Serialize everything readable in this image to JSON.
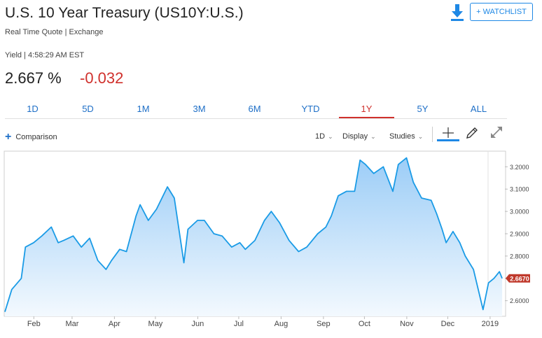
{
  "header": {
    "title": "U.S. 10 Year Treasury (US10Y:U.S.)",
    "subtitle": "Real Time Quote | Exchange",
    "yield_line": "Yield | 4:58:29 AM EST",
    "price": "2.667 %",
    "change": "-0.032",
    "watchlist_label": "+ WATCHLIST"
  },
  "colors": {
    "accent": "#1e88e5",
    "negative": "#d0312d",
    "line": "#1a9be6",
    "fill": "#cfe6fb"
  },
  "tabs": [
    {
      "label": "1D"
    },
    {
      "label": "5D"
    },
    {
      "label": "1M"
    },
    {
      "label": "3M"
    },
    {
      "label": "6M"
    },
    {
      "label": "YTD"
    },
    {
      "label": "1Y",
      "active": true
    },
    {
      "label": "5Y"
    },
    {
      "label": "ALL"
    }
  ],
  "toolbar": {
    "comparison": "Comparison",
    "interval": "1D",
    "display": "Display",
    "studies": "Studies"
  },
  "icons": [
    "download-icon",
    "plus-icon",
    "crosshair-icon",
    "draw-pencil-icon",
    "expand-icon"
  ],
  "chart_data": {
    "type": "area",
    "title": "",
    "current_value_label": "2.6670",
    "ylim": [
      2.53,
      3.27
    ],
    "y_ticks": [
      3.2,
      3.1,
      3.0,
      2.9,
      2.8,
      2.7,
      2.6
    ],
    "y_tick_labels": [
      "3.2000",
      "3.1000",
      "3.0000",
      "2.9000",
      "2.8000",
      "2.7000",
      "2.6000"
    ],
    "x_tick_labels": [
      "Feb",
      "Mar",
      "Apr",
      "May",
      "Jun",
      "Jul",
      "Aug",
      "Sep",
      "Oct",
      "Nov",
      "Dec",
      "2019"
    ],
    "grid": false,
    "x": [
      "2018-01-18",
      "2018-01-23",
      "2018-01-30",
      "2018-02-02",
      "2018-02-08",
      "2018-02-14",
      "2018-02-21",
      "2018-02-26",
      "2018-03-02",
      "2018-03-09",
      "2018-03-15",
      "2018-03-21",
      "2018-03-27",
      "2018-04-02",
      "2018-04-06",
      "2018-04-12",
      "2018-04-17",
      "2018-04-24",
      "2018-04-27",
      "2018-05-03",
      "2018-05-09",
      "2018-05-17",
      "2018-05-22",
      "2018-05-29",
      "2018-06-01",
      "2018-06-08",
      "2018-06-13",
      "2018-06-20",
      "2018-06-26",
      "2018-07-03",
      "2018-07-09",
      "2018-07-13",
      "2018-07-20",
      "2018-07-27",
      "2018-08-01",
      "2018-08-07",
      "2018-08-14",
      "2018-08-21",
      "2018-08-27",
      "2018-09-04",
      "2018-09-10",
      "2018-09-14",
      "2018-09-19",
      "2018-09-25",
      "2018-10-01",
      "2018-10-05",
      "2018-10-09",
      "2018-10-15",
      "2018-10-22",
      "2018-10-29",
      "2018-11-02",
      "2018-11-08",
      "2018-11-13",
      "2018-11-19",
      "2018-11-26",
      "2018-11-30",
      "2018-12-04",
      "2018-12-07",
      "2018-12-12",
      "2018-12-17",
      "2018-12-21",
      "2018-12-27",
      "2019-01-03",
      "2019-01-07",
      "2019-01-11",
      "2019-01-15",
      "2019-01-17"
    ],
    "values": [
      2.55,
      2.65,
      2.7,
      2.84,
      2.86,
      2.89,
      2.93,
      2.86,
      2.87,
      2.89,
      2.84,
      2.88,
      2.78,
      2.74,
      2.78,
      2.83,
      2.82,
      2.98,
      3.03,
      2.96,
      3.01,
      3.11,
      3.06,
      2.77,
      2.92,
      2.96,
      2.96,
      2.9,
      2.89,
      2.84,
      2.86,
      2.83,
      2.87,
      2.96,
      3.0,
      2.95,
      2.87,
      2.82,
      2.84,
      2.9,
      2.93,
      2.98,
      3.07,
      3.09,
      3.09,
      3.23,
      3.21,
      3.17,
      3.2,
      3.09,
      3.21,
      3.24,
      3.13,
      3.06,
      3.05,
      2.99,
      2.92,
      2.86,
      2.91,
      2.86,
      2.8,
      2.74,
      2.56,
      2.68,
      2.7,
      2.73,
      2.7
    ]
  }
}
